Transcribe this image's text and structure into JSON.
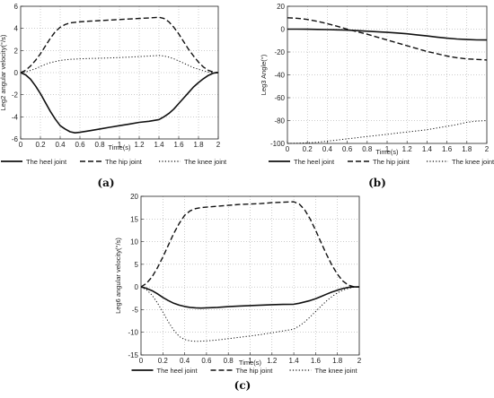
{
  "chart_data": [
    {
      "id": "a",
      "type": "line",
      "caption": "(a)",
      "xlabel": "Time(s)",
      "ylabel": "Leg2 angular velocity(°/s)",
      "xlim": [
        0,
        2
      ],
      "ylim": [
        -6,
        6
      ],
      "xticks": [
        "0",
        "0.2",
        "0.4",
        "0.6",
        "0.8",
        "1",
        "1.2",
        "1.4",
        "1.6",
        "1.8",
        "2"
      ],
      "yticks": [
        "-6",
        "-4",
        "-2",
        "0",
        "2",
        "4",
        "6"
      ],
      "grid": true,
      "legend_position": "bottom",
      "x": [
        0,
        0.05,
        0.1,
        0.15,
        0.2,
        0.25,
        0.3,
        0.35,
        0.4,
        0.45,
        0.5,
        0.55,
        0.6,
        0.7,
        0.8,
        0.9,
        1.0,
        1.1,
        1.2,
        1.3,
        1.4,
        1.45,
        1.5,
        1.55,
        1.6,
        1.65,
        1.7,
        1.75,
        1.8,
        1.85,
        1.9,
        1.95,
        2.0
      ],
      "series": [
        {
          "name": "The heel joint",
          "style": "solid",
          "values": [
            0,
            -0.2,
            -0.6,
            -1.2,
            -1.9,
            -2.7,
            -3.5,
            -4.2,
            -4.8,
            -5.1,
            -5.35,
            -5.45,
            -5.4,
            -5.25,
            -5.1,
            -4.95,
            -4.8,
            -4.65,
            -4.5,
            -4.4,
            -4.25,
            -4.0,
            -3.7,
            -3.3,
            -2.8,
            -2.3,
            -1.8,
            -1.3,
            -0.9,
            -0.55,
            -0.25,
            -0.05,
            0
          ]
        },
        {
          "name": "The hip joint",
          "style": "dashed",
          "values": [
            0,
            0.2,
            0.6,
            1.1,
            1.7,
            2.4,
            3.1,
            3.7,
            4.1,
            4.35,
            4.5,
            4.55,
            4.6,
            4.65,
            4.7,
            4.75,
            4.8,
            4.85,
            4.9,
            4.95,
            5.0,
            4.9,
            4.6,
            4.1,
            3.5,
            2.8,
            2.1,
            1.5,
            0.95,
            0.5,
            0.2,
            0.05,
            0
          ]
        },
        {
          "name": "The knee joint",
          "style": "dotted",
          "values": [
            0,
            0.05,
            0.2,
            0.35,
            0.55,
            0.75,
            0.9,
            1.0,
            1.1,
            1.15,
            1.2,
            1.22,
            1.25,
            1.28,
            1.3,
            1.33,
            1.36,
            1.4,
            1.45,
            1.5,
            1.55,
            1.5,
            1.4,
            1.25,
            1.05,
            0.85,
            0.65,
            0.45,
            0.3,
            0.15,
            0.05,
            0.0,
            0
          ]
        }
      ]
    },
    {
      "id": "b",
      "type": "line",
      "caption": "(b)",
      "xlabel": "Time(s)",
      "ylabel": "Leg3 Angle(°)",
      "xlim": [
        0,
        2
      ],
      "ylim": [
        -100,
        20
      ],
      "xticks": [
        "0",
        "0.2",
        "0.4",
        "0.6",
        "0.8",
        "1",
        "1.2",
        "1.4",
        "1.6",
        "1.8",
        "2"
      ],
      "yticks": [
        "-100",
        "-80",
        "-60",
        "-40",
        "-20",
        "0",
        "20"
      ],
      "grid": true,
      "legend_position": "bottom",
      "x": [
        0,
        0.1,
        0.2,
        0.3,
        0.4,
        0.5,
        0.6,
        0.7,
        0.8,
        0.9,
        1.0,
        1.1,
        1.2,
        1.3,
        1.4,
        1.5,
        1.6,
        1.7,
        1.8,
        1.9,
        2.0
      ],
      "series": [
        {
          "name": "The heel joint",
          "style": "solid",
          "values": [
            0,
            0,
            -0.1,
            -0.2,
            -0.4,
            -0.6,
            -0.9,
            -1.3,
            -1.8,
            -2.3,
            -2.8,
            -3.4,
            -4.1,
            -5.0,
            -6.0,
            -7.0,
            -7.9,
            -8.6,
            -9.1,
            -9.4,
            -9.5
          ]
        },
        {
          "name": "The hip joint",
          "style": "dashed",
          "values": [
            10,
            9.5,
            8.5,
            6.8,
            4.8,
            2.5,
            0,
            -2.3,
            -4.5,
            -7,
            -9.5,
            -12,
            -14.5,
            -17,
            -19.5,
            -21.5,
            -23.5,
            -25,
            -26,
            -26.5,
            -27
          ]
        },
        {
          "name": "The knee joint",
          "style": "dotted",
          "values": [
            -100,
            -99.8,
            -99.5,
            -99,
            -98,
            -97,
            -96,
            -95,
            -94,
            -93,
            -92,
            -91,
            -90,
            -89,
            -88,
            -86.5,
            -85,
            -83.5,
            -81.5,
            -80.5,
            -80
          ]
        }
      ]
    },
    {
      "id": "c",
      "type": "line",
      "caption": "(c)",
      "xlabel": "Time(s)",
      "ylabel": "Leg6 angular velocity(°/s)",
      "xlim": [
        0,
        2
      ],
      "ylim": [
        -15,
        20
      ],
      "xticks": [
        "0",
        "0.2",
        "0.4",
        "0.6",
        "0.8",
        "1",
        "1.2",
        "1.4",
        "1.6",
        "1.8",
        "2"
      ],
      "yticks": [
        "-15",
        "-10",
        "-5",
        "0",
        "5",
        "10",
        "15",
        "20"
      ],
      "grid": true,
      "legend_position": "bottom",
      "x": [
        0,
        0.05,
        0.1,
        0.15,
        0.2,
        0.25,
        0.3,
        0.35,
        0.4,
        0.45,
        0.5,
        0.55,
        0.6,
        0.7,
        0.8,
        0.9,
        1.0,
        1.1,
        1.2,
        1.3,
        1.4,
        1.45,
        1.5,
        1.55,
        1.6,
        1.65,
        1.7,
        1.75,
        1.8,
        1.85,
        1.9,
        1.95,
        2.0
      ],
      "series": [
        {
          "name": "The heel joint",
          "style": "solid",
          "values": [
            0,
            -0.3,
            -0.8,
            -1.5,
            -2.3,
            -3.0,
            -3.6,
            -4.0,
            -4.3,
            -4.5,
            -4.6,
            -4.65,
            -4.6,
            -4.5,
            -4.35,
            -4.2,
            -4.1,
            -4.0,
            -3.9,
            -3.85,
            -3.8,
            -3.6,
            -3.3,
            -3.0,
            -2.6,
            -2.1,
            -1.6,
            -1.1,
            -0.7,
            -0.35,
            -0.1,
            0,
            0
          ]
        },
        {
          "name": "The hip joint",
          "style": "dashed",
          "values": [
            0,
            0.8,
            2.2,
            4.2,
            6.6,
            9.2,
            11.8,
            14.0,
            15.8,
            16.8,
            17.3,
            17.5,
            17.6,
            17.8,
            18.0,
            18.2,
            18.3,
            18.4,
            18.6,
            18.7,
            18.8,
            18.3,
            17.0,
            15.0,
            12.5,
            9.8,
            7.2,
            4.8,
            2.8,
            1.3,
            0.4,
            0.05,
            0
          ]
        },
        {
          "name": "The knee joint",
          "style": "dotted",
          "values": [
            0,
            -0.6,
            -1.8,
            -3.5,
            -5.5,
            -7.7,
            -9.5,
            -10.9,
            -11.6,
            -11.9,
            -12.0,
            -11.95,
            -11.9,
            -11.7,
            -11.4,
            -11.1,
            -10.8,
            -10.5,
            -10.1,
            -9.7,
            -9.3,
            -8.6,
            -7.7,
            -6.6,
            -5.4,
            -4.2,
            -3.1,
            -2.1,
            -1.3,
            -0.7,
            -0.3,
            -0.05,
            0
          ]
        }
      ]
    }
  ]
}
